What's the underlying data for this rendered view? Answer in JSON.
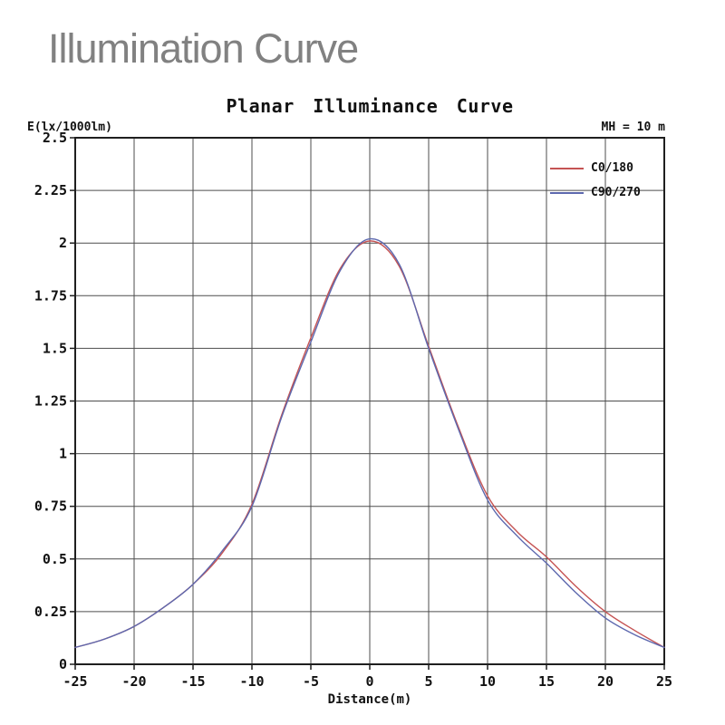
{
  "page": {
    "heading": "Illumination Curve"
  },
  "chart": {
    "title": "Planar Illuminance Curve",
    "y_axis_unit": "E(lx/1000lm)",
    "mounting_height": "MH = 10 m",
    "x_axis_title": "Distance(m)",
    "colors": {
      "heading_text": "#818181",
      "chart_text": "#111111",
      "grid_line": "#4d4d4d",
      "plot_border": "#1f1f1f",
      "series_c0_180": "#c55353",
      "series_c90_270": "#5d68ae",
      "background": "#ffffff"
    }
  },
  "chart_data": {
    "type": "line",
    "title": "Planar Illuminance Curve",
    "xlabel": "Distance(m)",
    "ylabel": "E(lx/1000lm)",
    "annotation": "MH = 10 m",
    "xlim": [
      -25,
      25
    ],
    "ylim": [
      0,
      2.5
    ],
    "grid": true,
    "legend_position": "top-right",
    "x_ticks": [
      {
        "v": -25,
        "label": "-25"
      },
      {
        "v": -20,
        "label": "-20"
      },
      {
        "v": -15,
        "label": "-15"
      },
      {
        "v": -10,
        "label": "-10"
      },
      {
        "v": -5,
        "label": "-5"
      },
      {
        "v": 0,
        "label": "0"
      },
      {
        "v": 5,
        "label": "5"
      },
      {
        "v": 10,
        "label": "10"
      },
      {
        "v": 15,
        "label": "15"
      },
      {
        "v": 20,
        "label": "20"
      },
      {
        "v": 25,
        "label": "25"
      }
    ],
    "y_ticks": [
      {
        "v": 0,
        "label": "0"
      },
      {
        "v": 0.25,
        "label": "0.25"
      },
      {
        "v": 0.5,
        "label": "0.5"
      },
      {
        "v": 0.75,
        "label": "0.75"
      },
      {
        "v": 1,
        "label": "1"
      },
      {
        "v": 1.25,
        "label": "1.25"
      },
      {
        "v": 1.5,
        "label": "1.5"
      },
      {
        "v": 1.75,
        "label": "1.75"
      },
      {
        "v": 2,
        "label": "2"
      },
      {
        "v": 2.25,
        "label": "2.25"
      },
      {
        "v": 2.5,
        "label": "2.5"
      }
    ],
    "x": [
      -25,
      -22.5,
      -20,
      -17.5,
      -15,
      -12.5,
      -10,
      -7.5,
      -5,
      -2.5,
      0,
      2.5,
      5,
      7.5,
      10,
      12.5,
      15,
      17.5,
      20,
      22.5,
      25
    ],
    "series": [
      {
        "name": "C0/180",
        "color": "#c55353",
        "values": [
          0.08,
          0.12,
          0.18,
          0.27,
          0.38,
          0.53,
          0.76,
          1.18,
          1.55,
          1.88,
          2.01,
          1.89,
          1.51,
          1.13,
          0.8,
          0.63,
          0.51,
          0.37,
          0.25,
          0.16,
          0.08
        ]
      },
      {
        "name": "C90/270",
        "color": "#5d68ae",
        "values": [
          0.08,
          0.12,
          0.18,
          0.27,
          0.38,
          0.54,
          0.75,
          1.17,
          1.53,
          1.87,
          2.02,
          1.9,
          1.5,
          1.12,
          0.78,
          0.61,
          0.48,
          0.34,
          0.22,
          0.14,
          0.08
        ]
      }
    ]
  }
}
